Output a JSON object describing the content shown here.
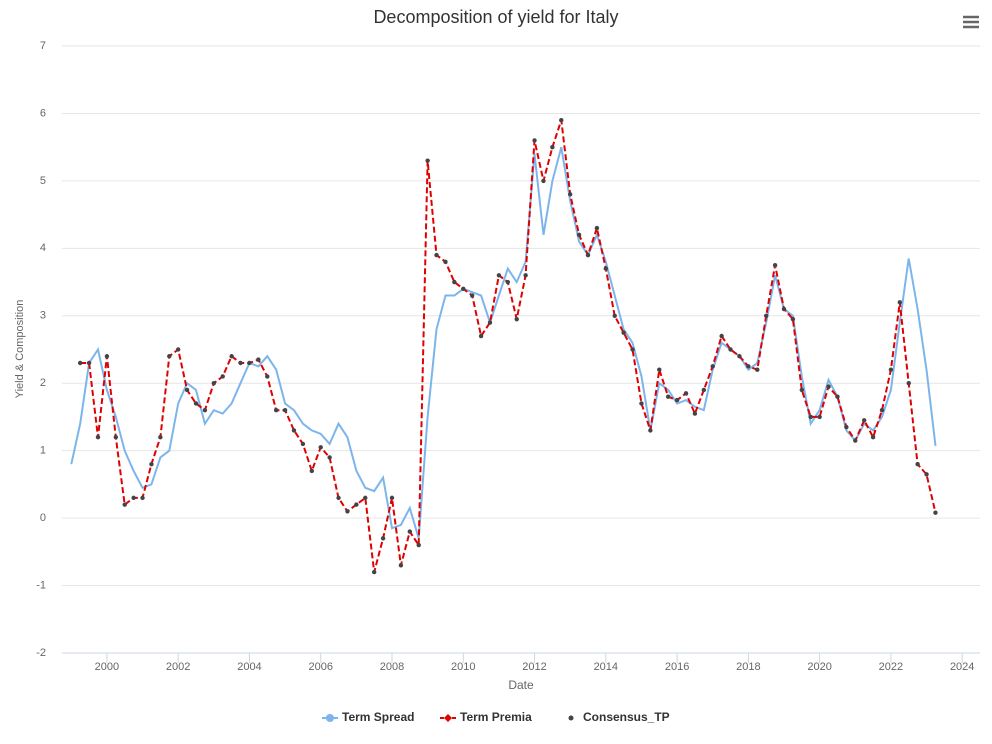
{
  "chart_data": {
    "type": "line",
    "title": "Decomposition of yield for Italy",
    "x_label": "Date",
    "y_label": "Yield & Composition",
    "xlim": [
      1998.74,
      2024.5
    ],
    "xticks": [
      2000,
      2002,
      2004,
      2006,
      2008,
      2010,
      2012,
      2014,
      2016,
      2018,
      2020,
      2022,
      2024
    ],
    "ylim": [
      -2,
      7
    ],
    "yticks": [
      -2,
      -1,
      0,
      1,
      2,
      3,
      4,
      5,
      6,
      7
    ],
    "grid": true,
    "legend": "bottom",
    "x": [
      1999.0,
      1999.25,
      1999.5,
      1999.75,
      2000.0,
      2000.25,
      2000.5,
      2000.75,
      2001.0,
      2001.25,
      2001.5,
      2001.75,
      2002.0,
      2002.25,
      2002.5,
      2002.75,
      2003.0,
      2003.25,
      2003.5,
      2003.75,
      2004.0,
      2004.25,
      2004.5,
      2004.75,
      2005.0,
      2005.25,
      2005.5,
      2005.75,
      2006.0,
      2006.25,
      2006.5,
      2006.75,
      2007.0,
      2007.25,
      2007.5,
      2007.75,
      2008.0,
      2008.25,
      2008.5,
      2008.75,
      2009.0,
      2009.25,
      2009.5,
      2009.75,
      2010.0,
      2010.25,
      2010.5,
      2010.75,
      2011.0,
      2011.25,
      2011.5,
      2011.75,
      2012.0,
      2012.25,
      2012.5,
      2012.75,
      2013.0,
      2013.25,
      2013.5,
      2013.75,
      2014.0,
      2014.25,
      2014.5,
      2014.75,
      2015.0,
      2015.25,
      2015.5,
      2015.75,
      2016.0,
      2016.25,
      2016.5,
      2016.75,
      2017.0,
      2017.25,
      2017.5,
      2017.75,
      2018.0,
      2018.25,
      2018.5,
      2018.75,
      2019.0,
      2019.25,
      2019.5,
      2019.75,
      2020.0,
      2020.25,
      2020.5,
      2020.75,
      2021.0,
      2021.25,
      2021.5,
      2021.75,
      2022.0,
      2022.25,
      2022.5,
      2022.75,
      2023.0,
      2023.25
    ],
    "series": [
      {
        "name": "Term Spread",
        "color": "#7cb5ec",
        "style": "solid",
        "values": [
          0.8,
          1.4,
          2.3,
          2.5,
          1.9,
          1.5,
          1.0,
          0.7,
          0.45,
          0.5,
          0.9,
          1.0,
          1.7,
          2.0,
          1.9,
          1.4,
          1.6,
          1.55,
          1.7,
          2.0,
          2.3,
          2.25,
          2.4,
          2.2,
          1.7,
          1.6,
          1.4,
          1.3,
          1.25,
          1.1,
          1.4,
          1.2,
          0.7,
          0.45,
          0.4,
          0.6,
          -0.15,
          -0.1,
          0.15,
          -0.3,
          1.5,
          2.8,
          3.3,
          3.3,
          3.4,
          3.35,
          3.3,
          2.9,
          3.3,
          3.7,
          3.5,
          3.8,
          5.4,
          4.2,
          5.0,
          5.5,
          4.7,
          4.1,
          3.9,
          4.2,
          3.8,
          3.3,
          2.8,
          2.6,
          2.1,
          1.3,
          2.0,
          1.9,
          1.7,
          1.75,
          1.65,
          1.6,
          2.2,
          2.6,
          2.5,
          2.4,
          2.2,
          2.3,
          2.9,
          3.6,
          3.1,
          3.0,
          2.1,
          1.4,
          1.6,
          2.05,
          1.8,
          1.3,
          1.15,
          1.4,
          1.3,
          1.5,
          1.9,
          2.9,
          3.85,
          3.1,
          2.2,
          1.07
        ]
      },
      {
        "name": "Term Premia",
        "color": "#e00000",
        "style": "dashed",
        "values": [
          null,
          2.3,
          2.3,
          1.2,
          2.4,
          1.2,
          0.2,
          0.3,
          0.3,
          0.8,
          1.2,
          2.4,
          2.5,
          1.9,
          1.7,
          1.6,
          2.0,
          2.1,
          2.4,
          2.3,
          2.3,
          2.35,
          2.1,
          1.6,
          1.6,
          1.3,
          1.1,
          0.7,
          1.05,
          0.9,
          0.3,
          0.1,
          0.2,
          0.3,
          -0.8,
          -0.3,
          0.3,
          -0.7,
          -0.2,
          -0.4,
          5.3,
          3.9,
          3.8,
          3.5,
          3.4,
          3.3,
          2.7,
          2.9,
          3.6,
          3.5,
          2.95,
          3.6,
          5.6,
          5.0,
          5.5,
          5.9,
          4.8,
          4.2,
          3.9,
          4.3,
          3.7,
          3.0,
          2.75,
          2.5,
          1.7,
          1.3,
          2.2,
          1.8,
          1.75,
          1.85,
          1.55,
          1.9,
          2.25,
          2.7,
          2.5,
          2.4,
          2.25,
          2.2,
          3.0,
          3.75,
          3.1,
          2.95,
          1.9,
          1.5,
          1.5,
          1.95,
          1.8,
          1.35,
          1.15,
          1.45,
          1.2,
          1.6,
          2.2,
          3.2,
          2.0,
          0.8,
          0.65,
          0.08
        ]
      },
      {
        "name": "Consensus_TP",
        "color": "#434348",
        "style": "dots",
        "values": [
          null,
          2.3,
          2.3,
          1.2,
          2.4,
          1.2,
          0.2,
          0.3,
          0.3,
          0.8,
          1.2,
          2.4,
          2.5,
          1.9,
          1.7,
          1.6,
          2.0,
          2.1,
          2.4,
          2.3,
          2.3,
          2.35,
          2.1,
          1.6,
          1.6,
          1.3,
          1.1,
          0.7,
          1.05,
          0.9,
          0.3,
          0.1,
          0.2,
          0.3,
          -0.8,
          -0.3,
          0.3,
          -0.7,
          -0.2,
          -0.4,
          5.3,
          3.9,
          3.8,
          3.5,
          3.4,
          3.3,
          2.7,
          2.9,
          3.6,
          3.5,
          2.95,
          3.6,
          5.6,
          5.0,
          5.5,
          5.9,
          4.8,
          4.2,
          3.9,
          4.3,
          3.7,
          3.0,
          2.75,
          2.5,
          1.7,
          1.3,
          2.2,
          1.8,
          1.75,
          1.85,
          1.55,
          1.9,
          2.25,
          2.7,
          2.5,
          2.4,
          2.25,
          2.2,
          3.0,
          3.75,
          3.1,
          2.95,
          1.9,
          1.5,
          1.5,
          1.95,
          1.8,
          1.35,
          1.15,
          1.45,
          1.2,
          1.6,
          2.2,
          3.2,
          2.0,
          0.8,
          0.65,
          0.08
        ]
      }
    ]
  }
}
